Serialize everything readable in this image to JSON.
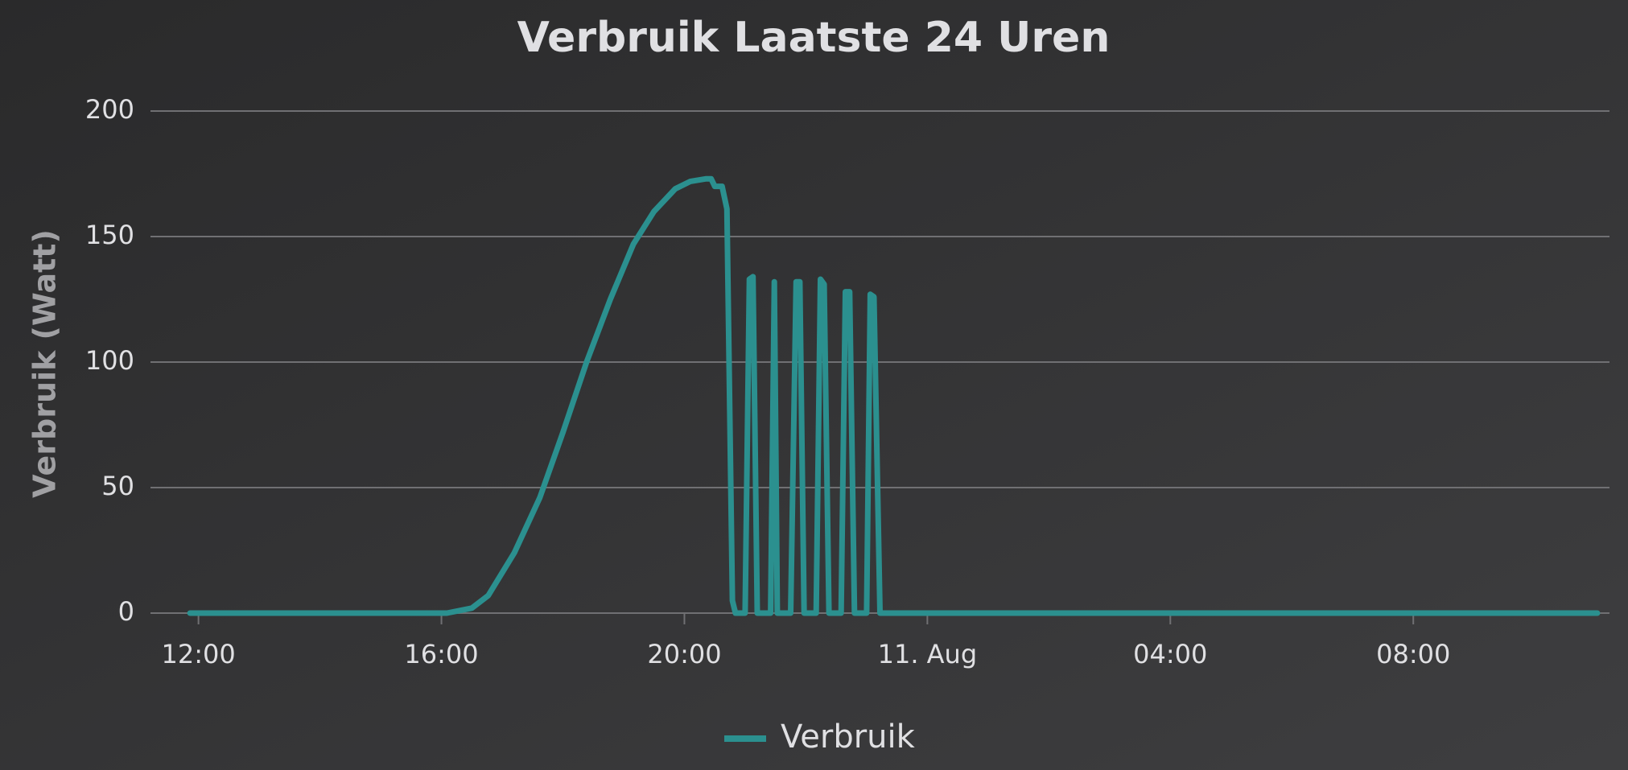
{
  "chart_data": {
    "type": "line",
    "title": "Verbruik Laatste 24 Uren",
    "y_label": "Verbruik (Watt)",
    "x": [
      11.86,
      16.09,
      16.5,
      16.77,
      17.2,
      17.62,
      18.0,
      18.39,
      18.78,
      19.16,
      19.5,
      19.85,
      20.1,
      20.36,
      20.44,
      20.5,
      20.62,
      20.7,
      20.79,
      20.84,
      21.0,
      21.07,
      21.13,
      21.2,
      21.42,
      21.48,
      21.53,
      21.75,
      21.84,
      21.9,
      21.97,
      22.17,
      22.24,
      22.3,
      22.38,
      22.58,
      22.65,
      22.72,
      22.8,
      23.0,
      23.06,
      23.12,
      23.22,
      35.03
    ],
    "series": [
      {
        "name": "Verbruik",
        "color": "#2b908f",
        "values": [
          0,
          0,
          2,
          7,
          24,
          46,
          72,
          100,
          125,
          147,
          160,
          169,
          172,
          173,
          173,
          170,
          170,
          161,
          5,
          0,
          0,
          133,
          134,
          0,
          0,
          132,
          0,
          0,
          132,
          132,
          0,
          0,
          133,
          131,
          0,
          0,
          128,
          128,
          0,
          0,
          127,
          126,
          0,
          0
        ]
      }
    ],
    "xlim": [
      11.21,
      35.23
    ],
    "xticks": [
      {
        "value": 12,
        "label": "12:00"
      },
      {
        "value": 16,
        "label": "16:00"
      },
      {
        "value": 20,
        "label": "20:00"
      },
      {
        "value": 24,
        "label": "11. Aug"
      },
      {
        "value": 28,
        "label": "04:00"
      },
      {
        "value": 32,
        "label": "08:00"
      }
    ],
    "ylim": [
      0,
      200
    ],
    "yticks": [
      0,
      50,
      100,
      150,
      200
    ],
    "grid": true,
    "legend": "bottom"
  }
}
